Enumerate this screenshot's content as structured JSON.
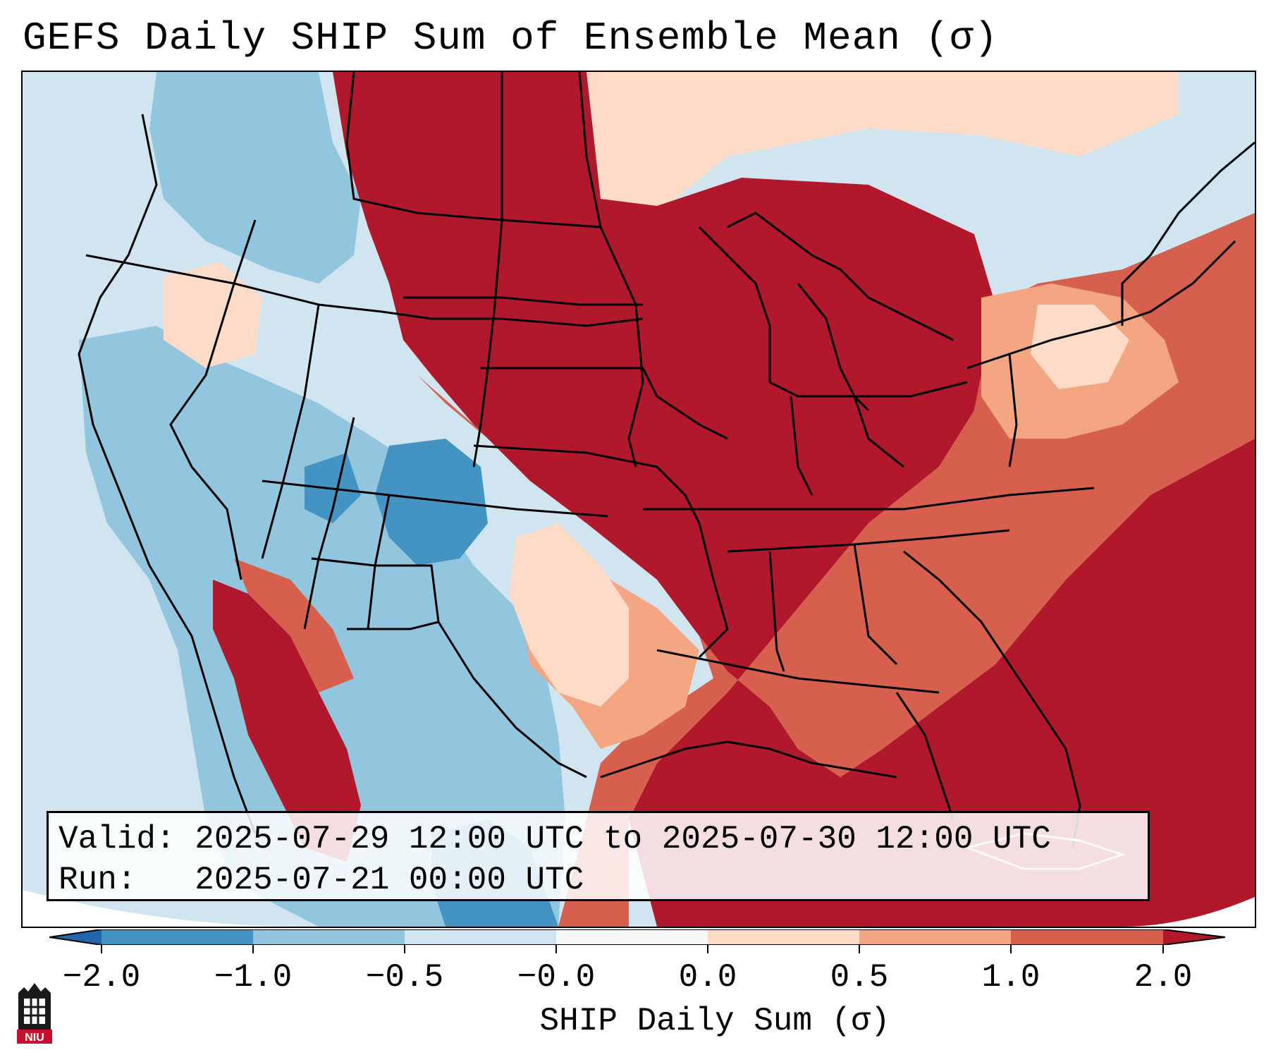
{
  "title": "GEFS Daily SHIP Sum of Ensemble Mean (σ)",
  "info": {
    "valid_label": "Valid:",
    "valid_value": "2025-07-29 12:00 UTC to 2025-07-30 12:00 UTC",
    "run_label": "Run:",
    "run_value": "2025-07-21 00:00 UTC"
  },
  "colorbar": {
    "label": "SHIP Daily Sum (σ)",
    "ticks": [
      "−2.0",
      "−1.0",
      "−0.5",
      "−0.0",
      "0.0",
      "0.5",
      "1.0",
      "2.0"
    ],
    "colors": [
      "#2166ac",
      "#4393c3",
      "#92c5de",
      "#d1e5f0",
      "#f7f7f7",
      "#fddbc7",
      "#f4a582",
      "#d6604d",
      "#b2182b"
    ]
  },
  "logo": {
    "text": "NIU",
    "icon": "niu-logo-icon"
  }
}
